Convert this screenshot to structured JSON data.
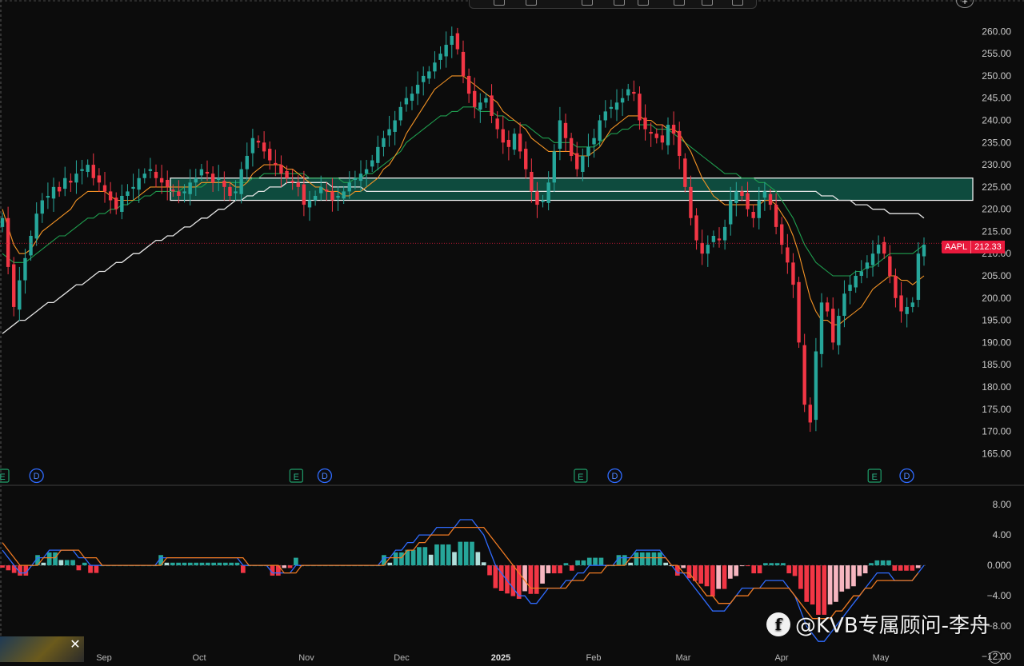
{
  "toolbar": {
    "icons": [
      "drawing-tool-icon",
      "rectangle-icon",
      "candle-type-icon",
      "indicator-icon",
      "compare-icon",
      "layout-icon",
      "alert-icon",
      "replay-icon"
    ]
  },
  "symbol": "AAPL",
  "last_price": "212.33",
  "colors": {
    "up": "#26a69a",
    "down": "#f23645",
    "ma_orange": "#f59425",
    "ma_green": "#1f9e4f",
    "ma_white": "#e6e6e6",
    "zone": "#0e4b3e",
    "macd": "#2f6bff",
    "signal": "#f07a22"
  },
  "watermark": "@KVB专属顾问-李舟",
  "chart_data": [
    {
      "type": "candlestick",
      "title": "",
      "x_labels": [
        "Sep",
        "Oct",
        "Nov",
        "Dec",
        "2025",
        "Feb",
        "Mar",
        "Apr",
        "May"
      ],
      "y_ticks": [
        165,
        170,
        175,
        180,
        185,
        190,
        195,
        200,
        205,
        210,
        215,
        220,
        225,
        230,
        235,
        240,
        245,
        250,
        255,
        260
      ],
      "ylim": [
        162.0,
        266.0
      ],
      "zone": [
        222.0,
        227.0
      ],
      "events": [
        {
          "label": "E",
          "x": 0.0
        },
        {
          "label": "D",
          "x": 1.8
        },
        {
          "label": "E",
          "x": 15.5
        },
        {
          "label": "D",
          "x": 17.0
        },
        {
          "label": "E",
          "x": 30.5
        },
        {
          "label": "D",
          "x": 32.3
        },
        {
          "label": "E",
          "x": 46.0
        },
        {
          "label": "D",
          "x": 47.7
        }
      ],
      "closes": [
        218,
        207,
        198,
        204,
        209,
        214,
        219,
        222,
        223,
        225,
        224,
        227,
        226,
        228,
        229,
        230,
        227,
        226,
        224,
        222,
        220,
        223,
        224,
        225,
        227,
        228,
        229,
        227,
        226,
        225,
        224,
        223,
        224,
        226,
        227,
        229,
        228,
        226,
        227,
        225,
        223,
        224,
        229,
        232,
        236,
        235,
        233,
        231,
        230,
        228,
        227,
        226,
        225,
        221,
        222,
        223,
        225,
        224,
        222,
        223,
        224,
        226,
        227,
        228,
        229,
        231,
        234,
        236,
        238,
        240,
        243,
        245,
        246,
        248,
        250,
        251,
        253,
        255,
        257,
        259,
        256,
        250,
        246,
        243,
        244,
        245,
        241,
        238,
        235,
        234,
        237,
        233,
        229,
        224,
        221,
        222,
        226,
        233,
        240,
        236,
        232,
        229,
        232,
        234,
        236,
        240,
        242,
        243,
        244,
        245,
        247,
        246,
        240,
        238,
        237,
        236,
        235,
        239,
        237,
        232,
        225,
        218,
        213,
        210,
        212,
        214,
        213,
        216,
        222,
        224,
        223,
        220,
        218,
        222,
        224,
        221,
        216,
        212,
        208,
        203,
        190,
        176,
        172,
        188,
        199,
        197,
        190,
        196,
        201,
        203,
        205,
        206,
        208,
        210,
        212,
        210,
        205,
        200,
        197,
        198,
        199,
        210,
        212
      ],
      "ma_orange": [
        220,
        216,
        212,
        210,
        210,
        211,
        213,
        215,
        216,
        217,
        218,
        219,
        220,
        222,
        223,
        224,
        224,
        224,
        224,
        223,
        222,
        222,
        222,
        222,
        223,
        224,
        225,
        225,
        225,
        225,
        225,
        225,
        225,
        225,
        225,
        226,
        226,
        226,
        226,
        226,
        226,
        225,
        225,
        226,
        228,
        229,
        230,
        230,
        230,
        230,
        229,
        229,
        228,
        227,
        226,
        225,
        225,
        224,
        224,
        224,
        223,
        223,
        224,
        224,
        225,
        226,
        227,
        229,
        230,
        232,
        234,
        237,
        239,
        241,
        243,
        245,
        247,
        248,
        249,
        250,
        250,
        250,
        249,
        248,
        247,
        246,
        245,
        244,
        242,
        241,
        240,
        239,
        238,
        236,
        235,
        234,
        233,
        233,
        233,
        233,
        233,
        232,
        232,
        232,
        233,
        234,
        236,
        238,
        239,
        240,
        241,
        241,
        241,
        240,
        240,
        239,
        239,
        238,
        238,
        237,
        235,
        233,
        230,
        227,
        225,
        223,
        222,
        221,
        221,
        221,
        221,
        221,
        221,
        221,
        222,
        222,
        221,
        219,
        217,
        214,
        210,
        205,
        200,
        197,
        195,
        195,
        194,
        194,
        195,
        196,
        197,
        198,
        200,
        202,
        203,
        204,
        205,
        205,
        204,
        204,
        203,
        204,
        205
      ],
      "ma_green": [
        210,
        209,
        208,
        208,
        208,
        209,
        210,
        211,
        212,
        213,
        214,
        214,
        215,
        216,
        217,
        218,
        218,
        219,
        219,
        220,
        220,
        221,
        221,
        222,
        222,
        223,
        223,
        224,
        224,
        224,
        224,
        224,
        225,
        225,
        225,
        225,
        226,
        226,
        226,
        226,
        226,
        226,
        226,
        226,
        227,
        227,
        228,
        228,
        228,
        228,
        228,
        228,
        228,
        228,
        227,
        227,
        227,
        227,
        227,
        227,
        226,
        226,
        227,
        227,
        228,
        228,
        229,
        230,
        231,
        232,
        233,
        235,
        236,
        237,
        238,
        239,
        240,
        241,
        241,
        242,
        242,
        243,
        243,
        243,
        242,
        242,
        242,
        241,
        241,
        240,
        240,
        239,
        239,
        238,
        237,
        236,
        236,
        235,
        235,
        235,
        235,
        234,
        234,
        234,
        234,
        235,
        236,
        237,
        237,
        238,
        238,
        239,
        239,
        239,
        239,
        238,
        238,
        238,
        237,
        236,
        235,
        234,
        233,
        232,
        231,
        230,
        229,
        228,
        228,
        228,
        227,
        227,
        227,
        226,
        226,
        225,
        224,
        222,
        220,
        218,
        215,
        212,
        210,
        208,
        207,
        206,
        205,
        205,
        205,
        205,
        206,
        206,
        207,
        207,
        208,
        209,
        210,
        210,
        210,
        210,
        210,
        211,
        212
      ],
      "ma_white": [
        192,
        193,
        194,
        195,
        195,
        196,
        197,
        198,
        199,
        199,
        200,
        201,
        202,
        203,
        203,
        204,
        205,
        206,
        206,
        207,
        208,
        208,
        209,
        210,
        210,
        211,
        212,
        213,
        213,
        214,
        214,
        215,
        216,
        216,
        217,
        218,
        218,
        219,
        220,
        220,
        221,
        222,
        222,
        223,
        223,
        224,
        224,
        225,
        225,
        225,
        226,
        226,
        226,
        226,
        226,
        226,
        226,
        226,
        225,
        225,
        225,
        225,
        225,
        225,
        224,
        224,
        224,
        224,
        224,
        224,
        224,
        224,
        224,
        224,
        224,
        224,
        224,
        224,
        224,
        224,
        224,
        224,
        224,
        224,
        224,
        224,
        224,
        224,
        224,
        224,
        224,
        224,
        224,
        224,
        224,
        224,
        224,
        224,
        224,
        224,
        224,
        224,
        224,
        224,
        224,
        224,
        224,
        224,
        224,
        224,
        224,
        224,
        224,
        224,
        224,
        224,
        224,
        224,
        224,
        224,
        224,
        224,
        224,
        224,
        224,
        224,
        224,
        224,
        224,
        224,
        224,
        224,
        224,
        224,
        224,
        224,
        224,
        224,
        224,
        224,
        224,
        224,
        224,
        224,
        223,
        223,
        223,
        222,
        222,
        222,
        221,
        221,
        221,
        220,
        220,
        220,
        219,
        219,
        219,
        219,
        219,
        219,
        218
      ]
    },
    {
      "type": "macd",
      "title": "",
      "y_ticks": [
        8.0,
        4.0,
        0.0,
        -4.0,
        -8.0,
        -12.0
      ],
      "y_tick_labels": [
        "8.00",
        "4.00",
        "0.000",
        "−4.00",
        "−8.00",
        "−12.00"
      ],
      "ylim": [
        -12.5,
        10.0
      ],
      "macd": [
        2,
        1,
        0,
        -1,
        -1,
        0,
        1,
        1,
        2,
        2,
        2,
        2,
        2,
        1,
        1,
        0,
        0,
        0,
        0,
        0,
        0,
        0,
        0,
        0,
        0,
        0,
        0,
        1,
        1,
        1,
        1,
        1,
        1,
        1,
        1,
        1,
        1,
        1,
        1,
        1,
        1,
        0,
        0,
        0,
        0,
        0,
        -1,
        -1,
        -1,
        -1,
        0,
        0,
        0,
        0,
        0,
        0,
        0,
        0,
        0,
        0,
        0,
        0,
        0,
        0,
        0,
        1,
        1,
        2,
        2,
        3,
        3,
        4,
        4,
        4,
        5,
        5,
        5,
        5,
        6,
        6,
        6,
        5,
        4,
        2,
        0,
        -1,
        -2,
        -3,
        -4,
        -4,
        -5,
        -5,
        -4,
        -3,
        -3,
        -3,
        -2,
        -2,
        -1,
        -1,
        0,
        0,
        0,
        0,
        0,
        1,
        1,
        1,
        2,
        2,
        2,
        2,
        2,
        1,
        0,
        -1,
        -1,
        -2,
        -3,
        -4,
        -5,
        -6,
        -6,
        -6,
        -5,
        -4,
        -3,
        -3,
        -3,
        -3,
        -2,
        -2,
        -2,
        -2,
        -3,
        -4,
        -6,
        -8,
        -9,
        -10,
        -10,
        -9,
        -8,
        -7,
        -6,
        -5,
        -4,
        -3,
        -2,
        -1,
        -1,
        -1,
        -2,
        -2,
        -2,
        -2,
        -1,
        0
      ],
      "signal": [
        3,
        2,
        1,
        0,
        0,
        0,
        0,
        1,
        1,
        1,
        2,
        2,
        2,
        2,
        1,
        1,
        1,
        0,
        0,
        0,
        0,
        0,
        0,
        0,
        0,
        0,
        0,
        0,
        1,
        1,
        1,
        1,
        1,
        1,
        1,
        1,
        1,
        1,
        1,
        1,
        1,
        1,
        0,
        0,
        0,
        0,
        0,
        0,
        -1,
        -1,
        -1,
        0,
        0,
        0,
        0,
        0,
        0,
        0,
        0,
        0,
        0,
        0,
        0,
        0,
        0,
        0,
        1,
        1,
        1,
        2,
        2,
        3,
        3,
        4,
        4,
        4,
        4,
        5,
        5,
        5,
        5,
        5,
        5,
        4,
        3,
        2,
        1,
        0,
        -1,
        -2,
        -3,
        -3,
        -3,
        -3,
        -3,
        -3,
        -3,
        -2,
        -2,
        -2,
        -1,
        -1,
        -1,
        0,
        0,
        0,
        0,
        1,
        1,
        1,
        1,
        1,
        1,
        1,
        0,
        0,
        -1,
        -1,
        -2,
        -3,
        -4,
        -4,
        -5,
        -5,
        -5,
        -4,
        -4,
        -4,
        -3,
        -3,
        -3,
        -3,
        -3,
        -3,
        -3,
        -4,
        -5,
        -6,
        -7,
        -7,
        -7,
        -7,
        -6,
        -6,
        -5,
        -4,
        -4,
        -3,
        -3,
        -2,
        -2,
        -2,
        -2,
        -2,
        -2,
        -2,
        -1
      ]
    }
  ]
}
